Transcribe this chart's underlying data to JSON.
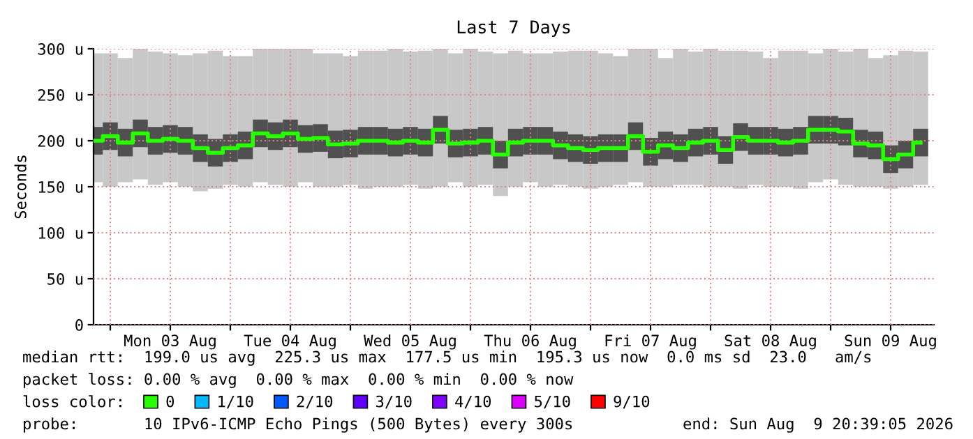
{
  "chart_data": {
    "type": "bar",
    "title": "Last 7 Days",
    "ylabel": "Seconds",
    "x": [
      "2026-08-02T21:00",
      "2026-08-03T00:00",
      "2026-08-03T03:00",
      "2026-08-03T06:00",
      "2026-08-03T09:00",
      "2026-08-03T12:00",
      "2026-08-03T15:00",
      "2026-08-03T18:00",
      "2026-08-03T21:00",
      "2026-08-04T00:00",
      "2026-08-04T03:00",
      "2026-08-04T06:00",
      "2026-08-04T09:00",
      "2026-08-04T12:00",
      "2026-08-04T15:00",
      "2026-08-04T18:00",
      "2026-08-04T21:00",
      "2026-08-05T00:00",
      "2026-08-05T03:00",
      "2026-08-05T06:00",
      "2026-08-05T09:00",
      "2026-08-05T12:00",
      "2026-08-05T15:00",
      "2026-08-05T18:00",
      "2026-08-05T21:00",
      "2026-08-06T00:00",
      "2026-08-06T03:00",
      "2026-08-06T06:00",
      "2026-08-06T09:00",
      "2026-08-06T12:00",
      "2026-08-06T15:00",
      "2026-08-06T18:00",
      "2026-08-06T21:00",
      "2026-08-07T00:00",
      "2026-08-07T03:00",
      "2026-08-07T06:00",
      "2026-08-07T09:00",
      "2026-08-07T12:00",
      "2026-08-07T15:00",
      "2026-08-07T18:00",
      "2026-08-07T21:00",
      "2026-08-08T00:00",
      "2026-08-08T03:00",
      "2026-08-08T06:00",
      "2026-08-08T09:00",
      "2026-08-08T12:00",
      "2026-08-08T15:00",
      "2026-08-08T18:00",
      "2026-08-08T21:00",
      "2026-08-09T00:00",
      "2026-08-09T03:00",
      "2026-08-09T06:00",
      "2026-08-09T09:00",
      "2026-08-09T12:00",
      "2026-08-09T15:00",
      "2026-08-09T18:00"
    ],
    "series": [
      {
        "color": "#c8c8c8",
        "base": [
          155,
          150,
          155,
          158,
          152,
          155,
          150,
          145,
          148,
          152,
          150,
          155,
          152,
          150,
          155,
          150,
          150,
          152,
          148,
          150,
          150,
          152,
          148,
          150,
          155,
          150,
          152,
          140,
          150,
          155,
          150,
          152,
          150,
          148,
          150,
          152,
          155,
          150,
          150,
          152,
          152,
          150,
          150,
          148,
          152,
          150,
          150,
          148,
          155,
          158,
          152,
          150,
          150,
          148,
          150,
          152
        ],
        "values": [
          140,
          145,
          135,
          142,
          145,
          140,
          143,
          150,
          150,
          140,
          142,
          145,
          148,
          150,
          145,
          145,
          145,
          140,
          150,
          148,
          150,
          145,
          150,
          150,
          140,
          150,
          145,
          155,
          148,
          140,
          145,
          145,
          148,
          150,
          145,
          140,
          145,
          150,
          140,
          148,
          145,
          150,
          148,
          150,
          145,
          140,
          148,
          150,
          140,
          142,
          145,
          150,
          140,
          145,
          148,
          145
        ]
      },
      {
        "color": "#505050",
        "base": [
          185,
          190,
          183,
          193,
          185,
          187,
          185,
          177,
          172,
          177,
          180,
          193,
          190,
          193,
          187,
          188,
          181,
          182,
          185,
          185,
          183,
          185,
          183,
          197,
          182,
          183,
          185,
          170,
          183,
          185,
          185,
          180,
          177,
          175,
          177,
          177,
          190,
          173,
          180,
          177,
          183,
          185,
          175,
          189,
          185,
          185,
          183,
          185,
          197,
          197,
          195,
          182,
          180,
          165,
          170,
          183
        ],
        "values": [
          30,
          30,
          30,
          30,
          30,
          30,
          30,
          30,
          30,
          30,
          30,
          30,
          30,
          30,
          30,
          30,
          30,
          30,
          30,
          30,
          30,
          30,
          30,
          30,
          30,
          30,
          30,
          30,
          30,
          30,
          30,
          30,
          30,
          30,
          30,
          30,
          30,
          30,
          30,
          30,
          30,
          30,
          30,
          30,
          30,
          30,
          30,
          30,
          30,
          30,
          30,
          30,
          30,
          30,
          30,
          30
        ]
      },
      {
        "type": "step",
        "name": "0",
        "color": "#26ff00",
        "values": [
          200,
          205,
          198,
          208,
          200,
          202,
          200,
          192,
          187,
          192,
          195,
          208,
          205,
          208,
          202,
          203,
          196,
          197,
          200,
          200,
          198,
          200,
          198,
          212,
          197,
          198,
          200,
          185,
          198,
          200,
          200,
          195,
          192,
          190,
          192,
          192,
          205,
          188,
          195,
          192,
          198,
          200,
          190,
          204,
          200,
          200,
          198,
          200,
          212,
          212,
          210,
          197,
          195,
          180,
          185,
          198
        ]
      },
      {
        "type": "scatter",
        "name": "1/10",
        "color": "#00b8ff",
        "values": [
          null,
          null,
          null,
          null,
          null,
          null,
          null,
          null,
          null,
          null,
          null,
          null,
          null,
          null,
          null,
          null,
          null,
          null,
          null,
          null,
          null,
          null,
          null,
          null,
          null,
          null,
          null,
          null,
          null,
          null,
          null,
          null,
          null,
          null,
          null,
          null,
          null,
          null,
          null,
          null,
          null,
          null,
          null,
          null,
          null,
          null,
          null,
          null,
          null,
          null,
          null,
          null,
          null,
          null,
          null,
          null
        ]
      },
      {
        "type": "scatter",
        "name": "2/10",
        "color": "#0059ff",
        "values": [
          null,
          null,
          null,
          null,
          null,
          null,
          null,
          null,
          null,
          null,
          null,
          null,
          null,
          null,
          null,
          null,
          null,
          null,
          null,
          null,
          null,
          null,
          null,
          null,
          null,
          null,
          null,
          null,
          null,
          null,
          null,
          null,
          null,
          null,
          null,
          null,
          null,
          null,
          null,
          null,
          null,
          null,
          null,
          null,
          null,
          null,
          null,
          null,
          null,
          null,
          null,
          null,
          null,
          null,
          null,
          null
        ]
      },
      {
        "type": "scatter",
        "name": "3/10",
        "color": "#5e00ff",
        "values": [
          null,
          null,
          null,
          null,
          null,
          null,
          null,
          null,
          null,
          null,
          null,
          null,
          null,
          null,
          null,
          null,
          null,
          null,
          null,
          null,
          null,
          null,
          null,
          null,
          null,
          null,
          null,
          null,
          null,
          null,
          null,
          null,
          null,
          null,
          null,
          null,
          null,
          null,
          null,
          null,
          null,
          null,
          null,
          null,
          null,
          null,
          null,
          null,
          null,
          null,
          null,
          null,
          null,
          null,
          null,
          null
        ]
      },
      {
        "type": "scatter",
        "name": "4/10",
        "color": "#7e00ff",
        "values": [
          null,
          null,
          null,
          null,
          null,
          null,
          null,
          null,
          null,
          null,
          null,
          null,
          null,
          null,
          null,
          null,
          null,
          null,
          null,
          null,
          null,
          null,
          null,
          null,
          null,
          null,
          null,
          null,
          null,
          null,
          null,
          null,
          null,
          null,
          null,
          null,
          null,
          null,
          null,
          null,
          null,
          null,
          null,
          null,
          null,
          null,
          null,
          null,
          null,
          null,
          null,
          null,
          null,
          null,
          null,
          null
        ]
      },
      {
        "type": "scatter",
        "name": "5/10",
        "color": "#dd00ff",
        "values": [
          null,
          null,
          null,
          null,
          null,
          null,
          null,
          null,
          null,
          null,
          null,
          null,
          null,
          null,
          null,
          null,
          null,
          null,
          null,
          null,
          null,
          null,
          null,
          null,
          null,
          null,
          null,
          null,
          null,
          null,
          null,
          null,
          null,
          null,
          null,
          null,
          null,
          null,
          null,
          null,
          null,
          null,
          null,
          null,
          null,
          null,
          null,
          null,
          null,
          null,
          null,
          null,
          null,
          null,
          null,
          null
        ]
      },
      {
        "type": "scatter",
        "name": "9/10",
        "color": "#ff0000",
        "values": [
          null,
          null,
          null,
          null,
          null,
          null,
          null,
          null,
          null,
          null,
          null,
          null,
          null,
          null,
          null,
          null,
          null,
          null,
          null,
          null,
          null,
          null,
          null,
          null,
          null,
          null,
          null,
          null,
          null,
          null,
          null,
          null,
          null,
          null,
          null,
          null,
          null,
          null,
          null,
          null,
          null,
          null,
          null,
          null,
          null,
          null,
          null,
          null,
          null,
          null,
          null,
          null,
          null,
          null,
          null,
          null
        ]
      }
    ],
    "xlim": [
      "2026-08-02T20:39",
      "2026-08-09T20:39"
    ],
    "xticks": [
      {
        "value": "2026-08-03T00:00",
        "label": null
      },
      {
        "value": "2026-08-03T12:00",
        "label": "Mon 03 Aug"
      },
      {
        "value": "2026-08-04T00:00",
        "label": null
      },
      {
        "value": "2026-08-04T12:00",
        "label": "Tue 04 Aug"
      },
      {
        "value": "2026-08-05T00:00",
        "label": null
      },
      {
        "value": "2026-08-05T12:00",
        "label": "Wed 05 Aug"
      },
      {
        "value": "2026-08-06T00:00",
        "label": null
      },
      {
        "value": "2026-08-06T12:00",
        "label": "Thu 06 Aug"
      },
      {
        "value": "2026-08-07T00:00",
        "label": null
      },
      {
        "value": "2026-08-07T12:00",
        "label": "Fri 07 Aug"
      },
      {
        "value": "2026-08-08T00:00",
        "label": null
      },
      {
        "value": "2026-08-08T12:00",
        "label": "Sat 08 Aug"
      },
      {
        "value": "2026-08-09T00:00",
        "label": null
      },
      {
        "value": "2026-08-09T12:00",
        "label": "Sun 09 Aug"
      }
    ],
    "ylim": [
      0,
      300
    ],
    "yticks": [
      0,
      {
        "value": 50,
        "label": "50 u"
      },
      {
        "value": 100,
        "label": "100 u"
      },
      {
        "value": 150,
        "label": "150 u"
      },
      {
        "value": 200,
        "label": "200 u"
      },
      {
        "value": 250,
        "label": "250 u"
      },
      {
        "value": 300,
        "label": "300 u"
      }
    ],
    "grid": true,
    "legend": "bottom",
    "legend_title": "loss color:",
    "annotations": [
      "median rtt:  199.0 us avg  225.3 us max  177.5 us min  195.3 us now  0.0 ms sd  23.0   am/s",
      "packet loss: 0.00 % avg  0.00 % max  0.00 % min  0.00 % now",
      "probe:       10 IPv6-ICMP Echo Pings (500 Bytes) every 300s",
      "end: Sun Aug  9 20:39:05 2026"
    ]
  }
}
